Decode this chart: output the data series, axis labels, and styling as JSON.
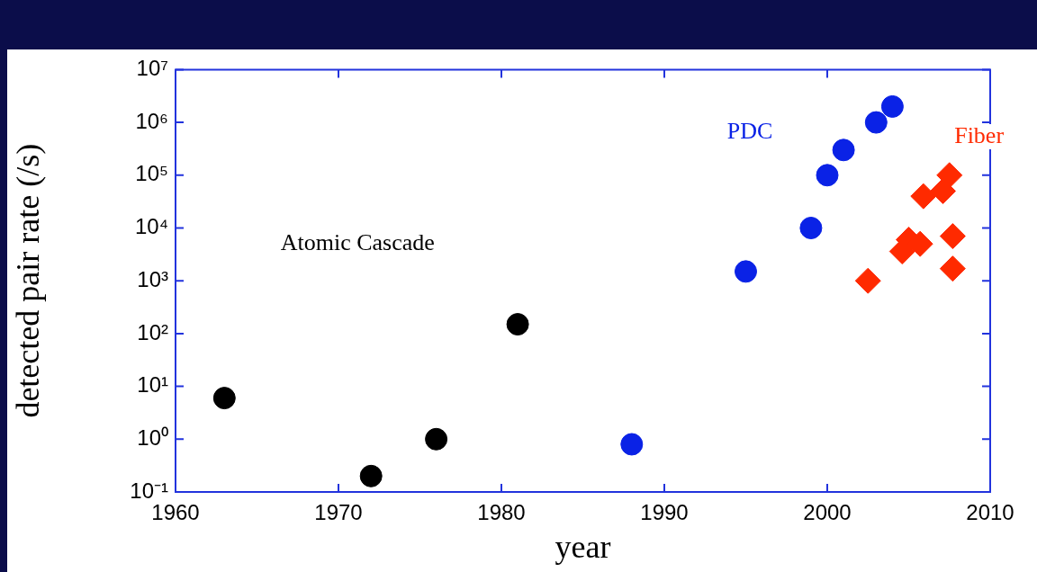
{
  "chart_data": {
    "type": "scatter",
    "xlabel": "year",
    "ylabel": "detected pair rate (/s)",
    "log": "y",
    "grid": false,
    "legend": false,
    "xlim": [
      1960,
      2010
    ],
    "xticks": [
      1960,
      1970,
      1980,
      1990,
      2000,
      2010
    ],
    "ylim": [
      0.1,
      10000000
    ],
    "yticks": [
      {
        "value": 0.1,
        "label": "10⁻¹"
      },
      {
        "value": 1,
        "label": "10⁰"
      },
      {
        "value": 10,
        "label": "10¹"
      },
      {
        "value": 100,
        "label": "10²"
      },
      {
        "value": 1000,
        "label": "10³"
      },
      {
        "value": 10000,
        "label": "10⁴"
      },
      {
        "value": 100000,
        "label": "10⁵"
      },
      {
        "value": 1000000,
        "label": "10⁶"
      },
      {
        "value": 10000000,
        "label": "10⁷"
      }
    ],
    "series": [
      {
        "name": "Atomic Cascade",
        "color": "#000000",
        "marker": "circle",
        "x": [
          1963,
          1972,
          1976,
          1981
        ],
        "values": [
          6,
          0.2,
          1,
          150
        ]
      },
      {
        "name": "PDC",
        "color": "#0a22e6",
        "marker": "circle",
        "x": [
          1988,
          1995,
          1999,
          2000,
          2001,
          2003,
          2004
        ],
        "values": [
          0.8,
          1500,
          10000,
          100000,
          300000,
          1000000,
          2000000
        ]
      },
      {
        "name": "Fiber",
        "color": "#ff2a00",
        "marker": "diamond",
        "x": [
          2002.5,
          2004.6,
          2005,
          2005.7,
          2005.9,
          2007.1,
          2007.5,
          2007.7,
          2007.7
        ],
        "values": [
          1000,
          3600,
          6000,
          5000,
          40000,
          50000,
          100000,
          7000,
          1700
        ]
      }
    ]
  }
}
